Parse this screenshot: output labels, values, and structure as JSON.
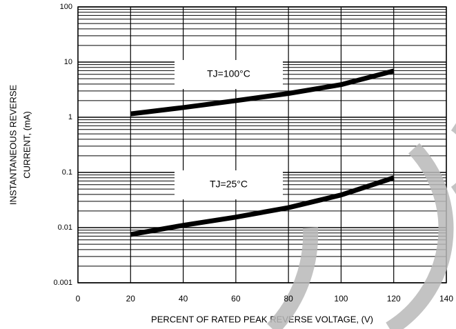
{
  "chart_data": {
    "type": "line",
    "xlabel": "PERCENT OF RATED PEAK REVERSE VOLTAGE, (V)",
    "ylabel": [
      "INSTANTANEOUS REVERSE",
      "CURRENT, (mA)"
    ],
    "x": [
      20,
      40,
      60,
      80,
      100,
      120
    ],
    "series": [
      {
        "name": "TJ=100°C",
        "color": "#000000",
        "values": [
          1.15,
          1.5,
          2.0,
          2.7,
          3.9,
          6.9
        ]
      },
      {
        "name": "TJ=25°C",
        "color": "#000000",
        "values": [
          0.0075,
          0.011,
          0.0155,
          0.023,
          0.039,
          0.08
        ]
      }
    ],
    "xlim": [
      0,
      140
    ],
    "xticks": [
      0,
      20,
      40,
      60,
      80,
      100,
      120,
      140
    ],
    "ylim": [
      0.001,
      100
    ],
    "yticks": [
      0.001,
      0.01,
      0.1,
      1,
      10,
      100
    ],
    "ylog": true,
    "grid": true
  }
}
